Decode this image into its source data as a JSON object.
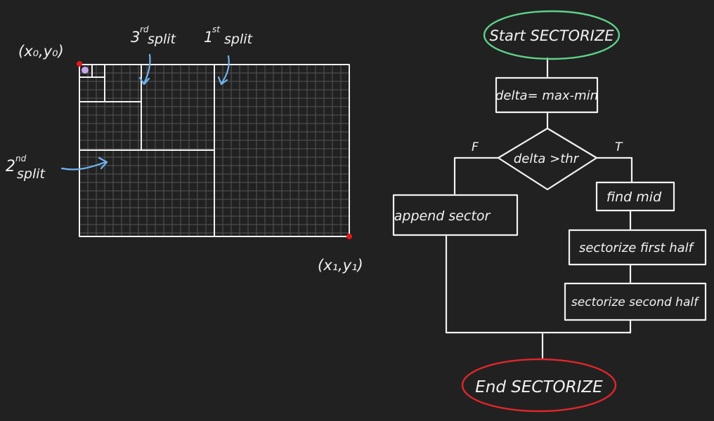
{
  "grid": {
    "corner_top_left": "(x₀,y₀)",
    "corner_bottom_right": "(x₁,y₁)",
    "split_labels": {
      "first": {
        "ordinal": "1",
        "suffix": "st",
        "word": "split"
      },
      "second": {
        "ordinal": "2",
        "suffix": "nd",
        "word": "split"
      },
      "third": {
        "ordinal": "3",
        "suffix": "rd",
        "word": "split"
      }
    }
  },
  "flowchart": {
    "start": "Start SECTORIZE",
    "delta": "delta= max-min",
    "decision": "delta >thr",
    "false_label": "F",
    "true_label": "T",
    "append": "append sector",
    "find_mid": "find mid",
    "first_half": "sectorize first half",
    "second_half": "sectorize second half",
    "end": "End SECTORIZE"
  },
  "colors": {
    "background": "#212121",
    "ink": "#f2f2f2",
    "arrow": "#6fb4f0",
    "start_outline": "#5fd18a",
    "end_outline": "#e0262a",
    "corner_dot": "#e01818",
    "sector_dot": "#c9a6e6"
  }
}
